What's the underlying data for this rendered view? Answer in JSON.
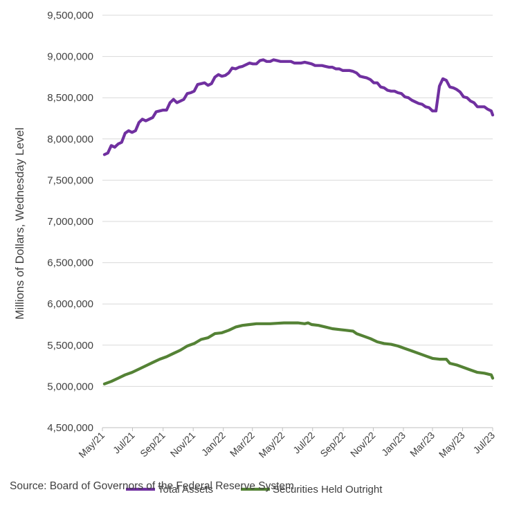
{
  "chart_data": {
    "type": "line",
    "ylabel": "Millions of Dollars, Wednesday Level",
    "xlabel": "",
    "ylim": [
      4500000,
      9500000
    ],
    "yticks": [
      4500000,
      5000000,
      5500000,
      6000000,
      6500000,
      7000000,
      7500000,
      8000000,
      8500000,
      9000000,
      9500000
    ],
    "ytick_labels": [
      "4,500,000",
      "5,000,000",
      "5,500,000",
      "6,000,000",
      "6,500,000",
      "7,000,000",
      "7,500,000",
      "8,000,000",
      "8,500,000",
      "9,000,000",
      "9,500,000"
    ],
    "xlim": [
      "2021-05-01",
      "2023-07-01"
    ],
    "xticks": [
      "2021-05-01",
      "2021-07-01",
      "2021-09-01",
      "2021-11-01",
      "2022-01-01",
      "2022-03-01",
      "2022-05-01",
      "2022-07-01",
      "2022-09-01",
      "2022-11-01",
      "2023-01-01",
      "2023-03-01",
      "2023-05-01",
      "2023-07-01"
    ],
    "xtick_labels": [
      "May/21",
      "Jul/21",
      "Sep/21",
      "Nov/21",
      "Jan/22",
      "Mar/22",
      "May/22",
      "Jul/22",
      "Sep/22",
      "Nov/22",
      "Jan/23",
      "Mar/23",
      "May/23",
      "Jul/23"
    ],
    "grid": "horizontal",
    "legend": "bottom",
    "series": [
      {
        "name": "Total Assets",
        "color": "#7030A0",
        "points": [
          [
            "2021-05-05",
            7810000
          ],
          [
            "2021-05-12",
            7830000
          ],
          [
            "2021-05-19",
            7920000
          ],
          [
            "2021-05-26",
            7900000
          ],
          [
            "2021-06-02",
            7940000
          ],
          [
            "2021-06-09",
            7960000
          ],
          [
            "2021-06-16",
            8070000
          ],
          [
            "2021-06-23",
            8100000
          ],
          [
            "2021-06-30",
            8080000
          ],
          [
            "2021-07-07",
            8100000
          ],
          [
            "2021-07-14",
            8200000
          ],
          [
            "2021-07-21",
            8240000
          ],
          [
            "2021-07-28",
            8220000
          ],
          [
            "2021-08-04",
            8240000
          ],
          [
            "2021-08-11",
            8260000
          ],
          [
            "2021-08-18",
            8330000
          ],
          [
            "2021-08-25",
            8340000
          ],
          [
            "2021-09-01",
            8350000
          ],
          [
            "2021-09-08",
            8350000
          ],
          [
            "2021-09-15",
            8440000
          ],
          [
            "2021-09-22",
            8480000
          ],
          [
            "2021-09-29",
            8440000
          ],
          [
            "2021-10-06",
            8460000
          ],
          [
            "2021-10-13",
            8480000
          ],
          [
            "2021-10-20",
            8550000
          ],
          [
            "2021-10-27",
            8560000
          ],
          [
            "2021-11-03",
            8580000
          ],
          [
            "2021-11-10",
            8660000
          ],
          [
            "2021-11-17",
            8670000
          ],
          [
            "2021-11-24",
            8680000
          ],
          [
            "2021-12-01",
            8650000
          ],
          [
            "2021-12-08",
            8670000
          ],
          [
            "2021-12-15",
            8750000
          ],
          [
            "2021-12-22",
            8780000
          ],
          [
            "2021-12-29",
            8760000
          ],
          [
            "2022-01-05",
            8770000
          ],
          [
            "2022-01-12",
            8800000
          ],
          [
            "2022-01-19",
            8860000
          ],
          [
            "2022-01-26",
            8850000
          ],
          [
            "2022-02-02",
            8870000
          ],
          [
            "2022-02-09",
            8880000
          ],
          [
            "2022-02-16",
            8900000
          ],
          [
            "2022-02-23",
            8920000
          ],
          [
            "2022-03-02",
            8910000
          ],
          [
            "2022-03-09",
            8910000
          ],
          [
            "2022-03-16",
            8950000
          ],
          [
            "2022-03-23",
            8960000
          ],
          [
            "2022-03-30",
            8940000
          ],
          [
            "2022-04-06",
            8940000
          ],
          [
            "2022-04-13",
            8960000
          ],
          [
            "2022-04-20",
            8950000
          ],
          [
            "2022-04-27",
            8940000
          ],
          [
            "2022-05-04",
            8940000
          ],
          [
            "2022-05-11",
            8940000
          ],
          [
            "2022-05-18",
            8940000
          ],
          [
            "2022-05-25",
            8920000
          ],
          [
            "2022-06-01",
            8920000
          ],
          [
            "2022-06-08",
            8920000
          ],
          [
            "2022-06-15",
            8930000
          ],
          [
            "2022-06-22",
            8920000
          ],
          [
            "2022-06-29",
            8910000
          ],
          [
            "2022-07-06",
            8890000
          ],
          [
            "2022-07-13",
            8890000
          ],
          [
            "2022-07-20",
            8890000
          ],
          [
            "2022-07-27",
            8880000
          ],
          [
            "2022-08-03",
            8870000
          ],
          [
            "2022-08-10",
            8870000
          ],
          [
            "2022-08-17",
            8850000
          ],
          [
            "2022-08-24",
            8850000
          ],
          [
            "2022-08-31",
            8830000
          ],
          [
            "2022-09-07",
            8830000
          ],
          [
            "2022-09-14",
            8830000
          ],
          [
            "2022-09-21",
            8820000
          ],
          [
            "2022-09-28",
            8800000
          ],
          [
            "2022-10-05",
            8760000
          ],
          [
            "2022-10-12",
            8750000
          ],
          [
            "2022-10-19",
            8740000
          ],
          [
            "2022-10-26",
            8720000
          ],
          [
            "2022-11-02",
            8680000
          ],
          [
            "2022-11-09",
            8680000
          ],
          [
            "2022-11-16",
            8630000
          ],
          [
            "2022-11-23",
            8620000
          ],
          [
            "2022-11-30",
            8590000
          ],
          [
            "2022-12-07",
            8580000
          ],
          [
            "2022-12-14",
            8580000
          ],
          [
            "2022-12-21",
            8560000
          ],
          [
            "2022-12-28",
            8550000
          ],
          [
            "2023-01-04",
            8510000
          ],
          [
            "2023-01-11",
            8500000
          ],
          [
            "2023-01-18",
            8470000
          ],
          [
            "2023-01-25",
            8450000
          ],
          [
            "2023-02-01",
            8430000
          ],
          [
            "2023-02-08",
            8420000
          ],
          [
            "2023-02-15",
            8390000
          ],
          [
            "2023-02-22",
            8380000
          ],
          [
            "2023-03-01",
            8340000
          ],
          [
            "2023-03-08",
            8340000
          ],
          [
            "2023-03-15",
            8640000
          ],
          [
            "2023-03-22",
            8730000
          ],
          [
            "2023-03-29",
            8710000
          ],
          [
            "2023-04-05",
            8630000
          ],
          [
            "2023-04-12",
            8620000
          ],
          [
            "2023-04-19",
            8600000
          ],
          [
            "2023-04-26",
            8570000
          ],
          [
            "2023-05-03",
            8510000
          ],
          [
            "2023-05-10",
            8500000
          ],
          [
            "2023-05-17",
            8460000
          ],
          [
            "2023-05-24",
            8440000
          ],
          [
            "2023-05-31",
            8390000
          ],
          [
            "2023-06-07",
            8390000
          ],
          [
            "2023-06-14",
            8390000
          ],
          [
            "2023-06-21",
            8360000
          ],
          [
            "2023-06-28",
            8340000
          ],
          [
            "2023-07-01",
            8290000
          ]
        ]
      },
      {
        "name": "Securities Held Outright",
        "color": "#548235",
        "points": [
          [
            "2021-05-05",
            5030000
          ],
          [
            "2021-05-19",
            5060000
          ],
          [
            "2021-06-02",
            5100000
          ],
          [
            "2021-06-16",
            5140000
          ],
          [
            "2021-06-30",
            5170000
          ],
          [
            "2021-07-14",
            5210000
          ],
          [
            "2021-07-28",
            5250000
          ],
          [
            "2021-08-11",
            5290000
          ],
          [
            "2021-08-25",
            5330000
          ],
          [
            "2021-09-08",
            5360000
          ],
          [
            "2021-09-22",
            5400000
          ],
          [
            "2021-10-06",
            5440000
          ],
          [
            "2021-10-20",
            5490000
          ],
          [
            "2021-11-03",
            5520000
          ],
          [
            "2021-11-17",
            5570000
          ],
          [
            "2021-12-01",
            5590000
          ],
          [
            "2021-12-15",
            5640000
          ],
          [
            "2021-12-29",
            5650000
          ],
          [
            "2022-01-12",
            5680000
          ],
          [
            "2022-01-26",
            5720000
          ],
          [
            "2022-02-09",
            5740000
          ],
          [
            "2022-02-23",
            5750000
          ],
          [
            "2022-03-09",
            5760000
          ],
          [
            "2022-03-23",
            5760000
          ],
          [
            "2022-04-06",
            5760000
          ],
          [
            "2022-04-20",
            5765000
          ],
          [
            "2022-05-04",
            5770000
          ],
          [
            "2022-05-18",
            5770000
          ],
          [
            "2022-06-01",
            5770000
          ],
          [
            "2022-06-15",
            5760000
          ],
          [
            "2022-06-22",
            5770000
          ],
          [
            "2022-06-29",
            5750000
          ],
          [
            "2022-07-13",
            5740000
          ],
          [
            "2022-07-27",
            5720000
          ],
          [
            "2022-08-10",
            5700000
          ],
          [
            "2022-08-24",
            5690000
          ],
          [
            "2022-09-07",
            5680000
          ],
          [
            "2022-09-21",
            5670000
          ],
          [
            "2022-09-28",
            5640000
          ],
          [
            "2022-10-12",
            5610000
          ],
          [
            "2022-10-26",
            5580000
          ],
          [
            "2022-11-09",
            5540000
          ],
          [
            "2022-11-23",
            5520000
          ],
          [
            "2022-12-07",
            5510000
          ],
          [
            "2022-12-21",
            5490000
          ],
          [
            "2023-01-04",
            5460000
          ],
          [
            "2023-01-18",
            5430000
          ],
          [
            "2023-02-01",
            5400000
          ],
          [
            "2023-02-15",
            5370000
          ],
          [
            "2023-03-01",
            5340000
          ],
          [
            "2023-03-15",
            5330000
          ],
          [
            "2023-03-29",
            5330000
          ],
          [
            "2023-04-05",
            5280000
          ],
          [
            "2023-04-19",
            5260000
          ],
          [
            "2023-05-03",
            5230000
          ],
          [
            "2023-05-17",
            5200000
          ],
          [
            "2023-05-31",
            5170000
          ],
          [
            "2023-06-14",
            5160000
          ],
          [
            "2023-06-28",
            5140000
          ],
          [
            "2023-07-01",
            5100000
          ]
        ]
      }
    ]
  },
  "source": "Source: Board of Governors of the Federal Reserve System"
}
